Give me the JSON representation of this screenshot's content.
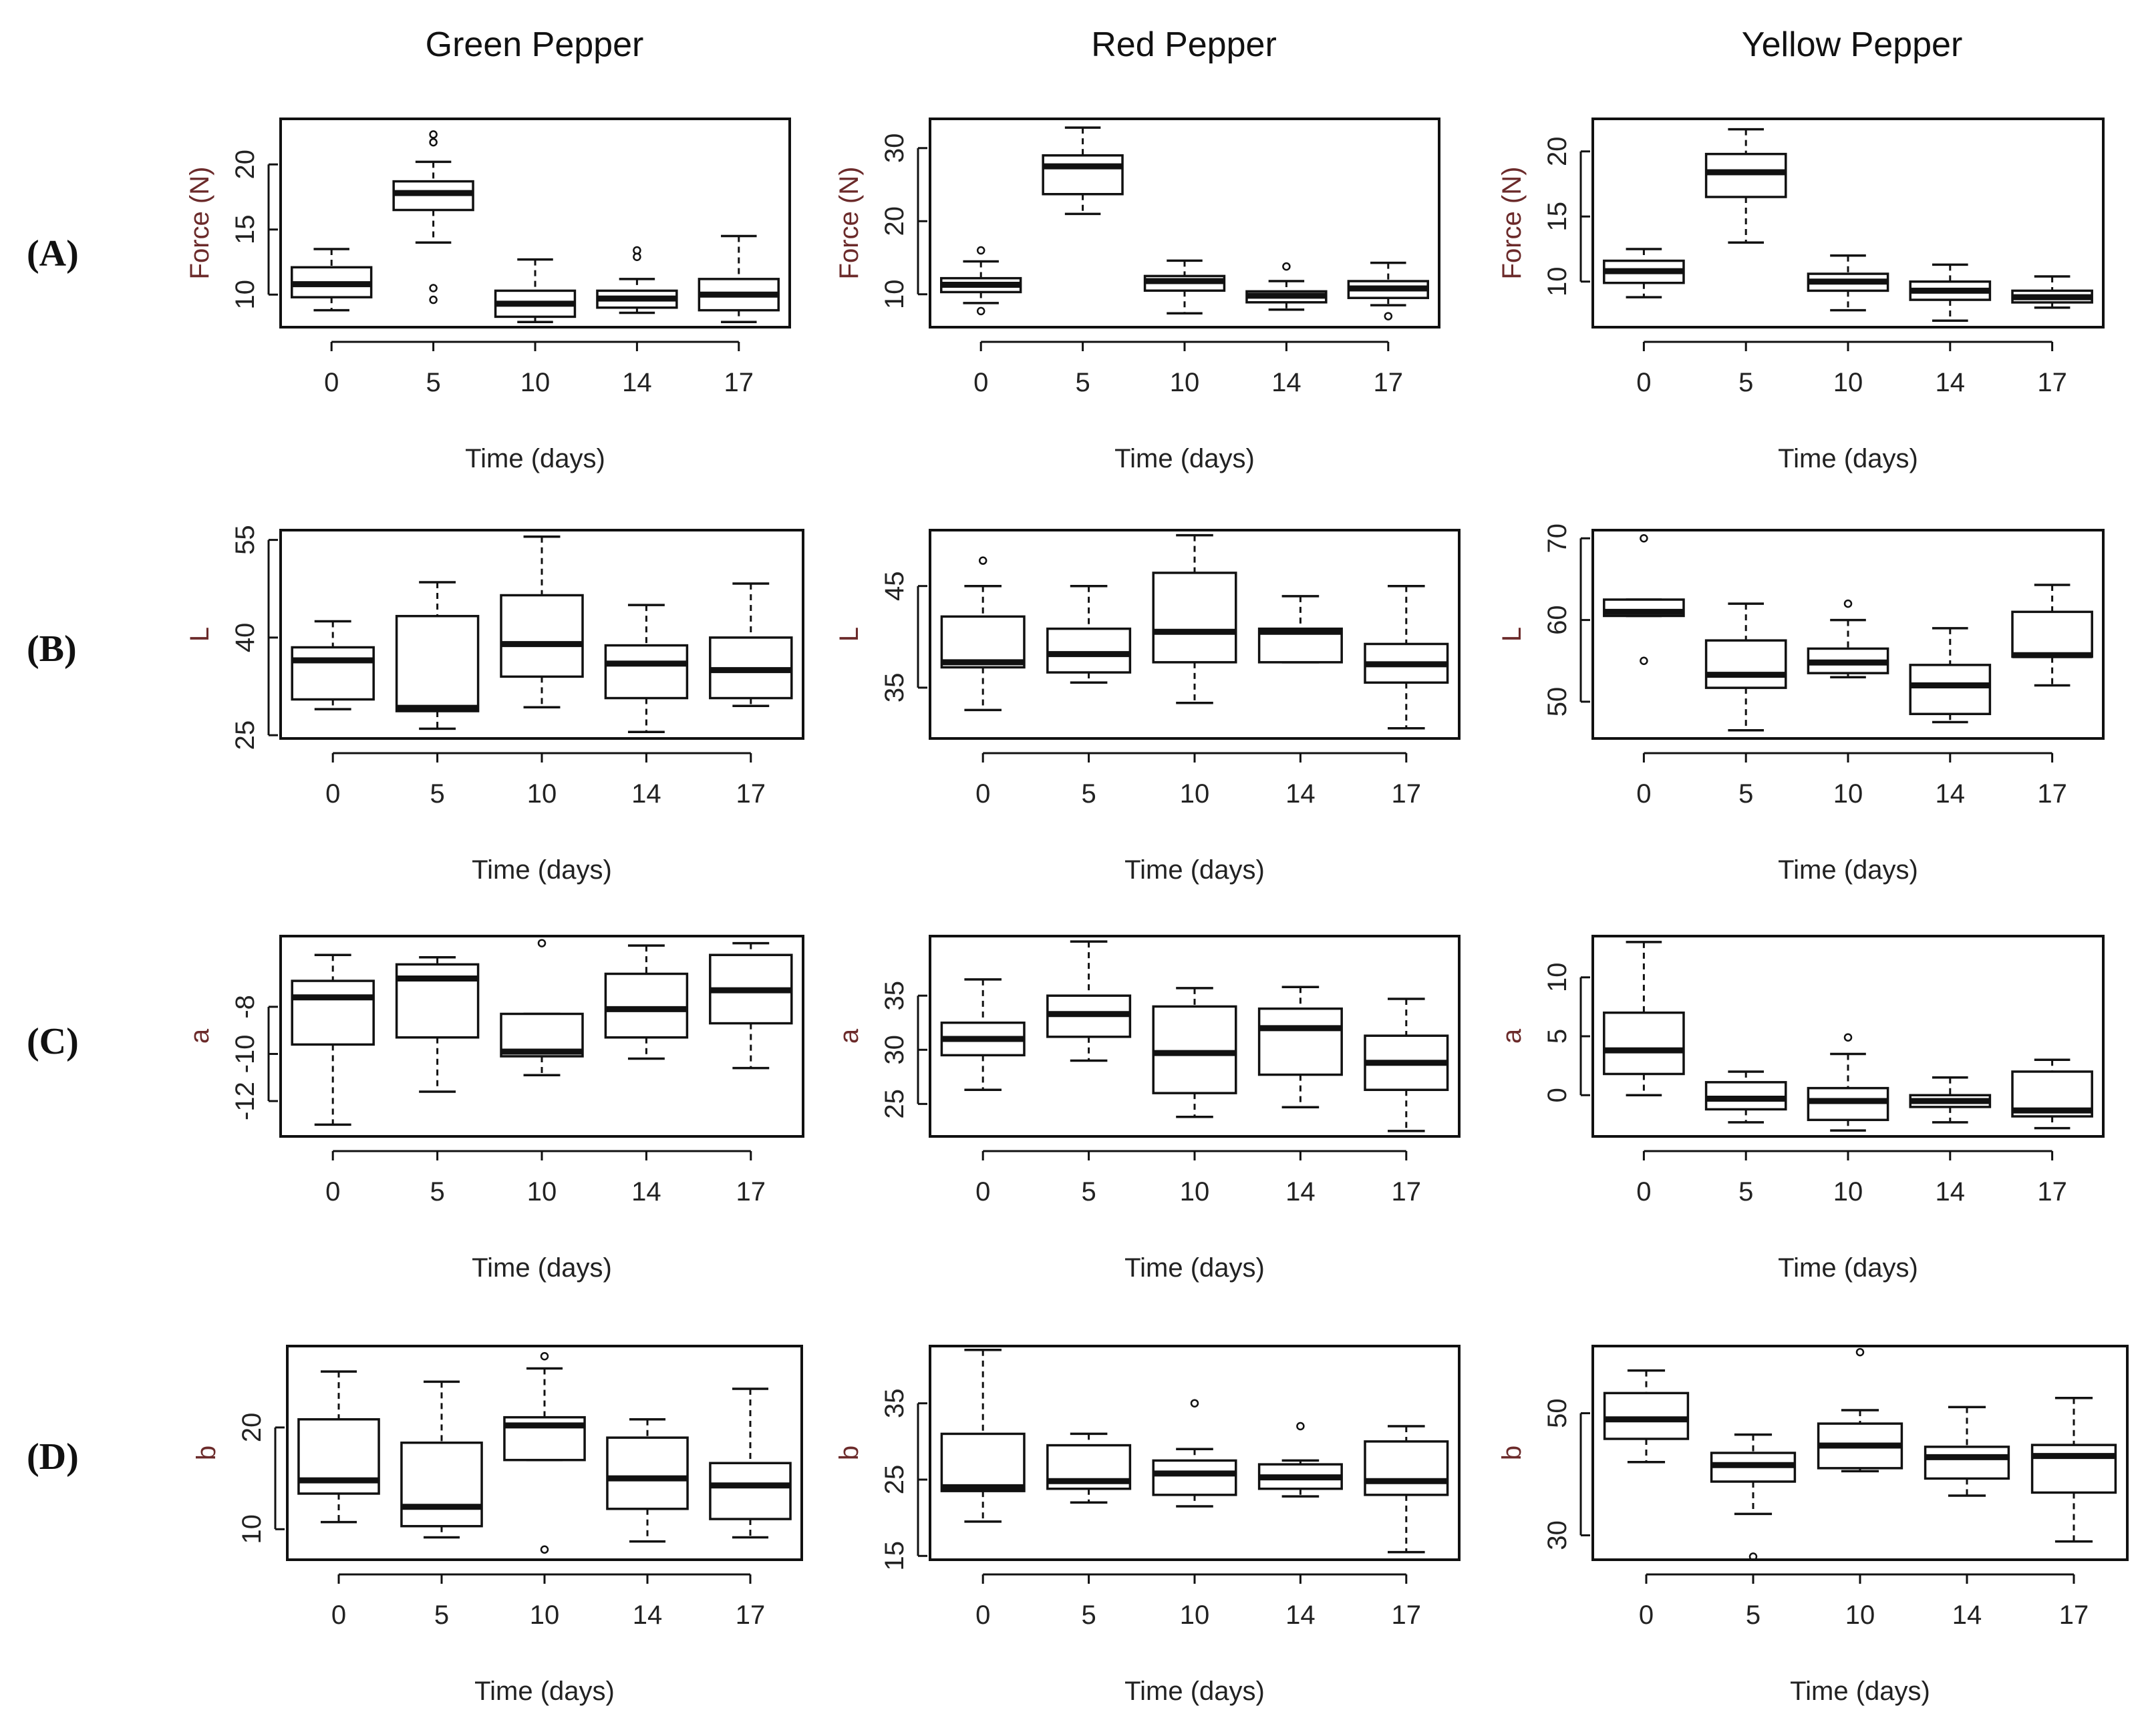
{
  "figure": {
    "column_titles": [
      "Green Pepper",
      "Red Pepper",
      "Yellow Pepper"
    ],
    "row_labels": [
      "(A)",
      "(B)",
      "(C)",
      "(D)"
    ],
    "x_label": "Time (days)"
  },
  "chart_data": [
    {
      "type": "box",
      "title": "Green Pepper (A)",
      "xlabel": "Time (days)",
      "ylabel": "Force (N)",
      "categories": [
        "0",
        "5",
        "10",
        "14",
        "17"
      ],
      "ylim": [
        7.5,
        23.5
      ],
      "yticks": [
        10,
        15,
        20
      ],
      "boxes": [
        {
          "min": 8.8,
          "q1": 9.8,
          "median": 10.8,
          "q3": 12.1,
          "max": 13.5,
          "outliers": []
        },
        {
          "min": 14.0,
          "q1": 16.5,
          "median": 17.8,
          "q3": 18.7,
          "max": 20.2,
          "outliers": [
            9.6,
            10.5,
            21.7,
            22.3
          ]
        },
        {
          "min": 7.9,
          "q1": 8.3,
          "median": 9.3,
          "q3": 10.3,
          "max": 12.7,
          "outliers": []
        },
        {
          "min": 8.6,
          "q1": 9.0,
          "median": 9.7,
          "q3": 10.3,
          "max": 11.2,
          "outliers": [
            12.9,
            13.4
          ]
        },
        {
          "min": 7.9,
          "q1": 8.8,
          "median": 10.0,
          "q3": 11.2,
          "max": 14.5,
          "outliers": []
        }
      ]
    },
    {
      "type": "box",
      "title": "Red Pepper (A)",
      "xlabel": "Time (days)",
      "ylabel": "Force (N)",
      "categories": [
        "0",
        "5",
        "10",
        "14",
        "17"
      ],
      "ylim": [
        5.5,
        34
      ],
      "yticks": [
        10,
        20,
        30
      ],
      "boxes": [
        {
          "min": 8.8,
          "q1": 10.3,
          "median": 11.3,
          "q3": 12.2,
          "max": 14.5,
          "outliers": [
            7.7,
            16.0
          ]
        },
        {
          "min": 21.0,
          "q1": 23.7,
          "median": 27.5,
          "q3": 29.0,
          "max": 32.8,
          "outliers": []
        },
        {
          "min": 7.4,
          "q1": 10.5,
          "median": 11.8,
          "q3": 12.5,
          "max": 14.6,
          "outliers": []
        },
        {
          "min": 7.9,
          "q1": 8.9,
          "median": 9.8,
          "q3": 10.4,
          "max": 11.8,
          "outliers": [
            13.8
          ]
        },
        {
          "min": 8.5,
          "q1": 9.5,
          "median": 10.8,
          "q3": 11.8,
          "max": 14.3,
          "outliers": [
            7.0
          ]
        }
      ]
    },
    {
      "type": "box",
      "title": "Yellow Pepper (A)",
      "xlabel": "Time (days)",
      "ylabel": "Force (N)",
      "categories": [
        "0",
        "5",
        "10",
        "14",
        "17"
      ],
      "ylim": [
        6.5,
        22.5
      ],
      "yticks": [
        10,
        15,
        20
      ],
      "boxes": [
        {
          "min": 8.8,
          "q1": 9.9,
          "median": 10.8,
          "q3": 11.6,
          "max": 12.5,
          "outliers": []
        },
        {
          "min": 13.0,
          "q1": 16.5,
          "median": 18.4,
          "q3": 19.8,
          "max": 21.7,
          "outliers": []
        },
        {
          "min": 7.8,
          "q1": 9.3,
          "median": 10.0,
          "q3": 10.6,
          "max": 12.0,
          "outliers": []
        },
        {
          "min": 7.0,
          "q1": 8.6,
          "median": 9.3,
          "q3": 10.0,
          "max": 11.3,
          "outliers": []
        },
        {
          "min": 8.0,
          "q1": 8.4,
          "median": 8.8,
          "q3": 9.3,
          "max": 10.4,
          "outliers": []
        }
      ]
    },
    {
      "type": "box",
      "title": "Green Pepper (B)",
      "xlabel": "Time (days)",
      "ylabel": "L",
      "categories": [
        "0",
        "5",
        "10",
        "14",
        "17"
      ],
      "ylim": [
        24.5,
        56.5
      ],
      "yticks": [
        25,
        40,
        55
      ],
      "boxes": [
        {
          "min": 29.0,
          "q1": 30.5,
          "median": 36.5,
          "q3": 38.5,
          "max": 42.5,
          "outliers": []
        },
        {
          "min": 26.0,
          "q1": 28.7,
          "median": 29.2,
          "q3": 43.3,
          "max": 48.5,
          "outliers": []
        },
        {
          "min": 29.3,
          "q1": 34.0,
          "median": 39.0,
          "q3": 46.5,
          "max": 55.5,
          "outliers": []
        },
        {
          "min": 25.5,
          "q1": 30.7,
          "median": 36.0,
          "q3": 38.8,
          "max": 45.0,
          "outliers": []
        },
        {
          "min": 29.5,
          "q1": 30.7,
          "median": 35.0,
          "q3": 40.0,
          "max": 48.3,
          "outliers": []
        }
      ]
    },
    {
      "type": "box",
      "title": "Red Pepper (B)",
      "xlabel": "Time (days)",
      "ylabel": "L",
      "categories": [
        "0",
        "5",
        "10",
        "14",
        "17"
      ],
      "ylim": [
        30,
        50.5
      ],
      "yticks": [
        35,
        45
      ],
      "boxes": [
        {
          "min": 32.8,
          "q1": 37.0,
          "median": 37.5,
          "q3": 42.0,
          "max": 45.0,
          "outliers": [
            47.5
          ]
        },
        {
          "min": 35.5,
          "q1": 36.5,
          "median": 38.3,
          "q3": 40.8,
          "max": 45.0,
          "outliers": []
        },
        {
          "min": 33.5,
          "q1": 37.5,
          "median": 40.5,
          "q3": 46.3,
          "max": 50.0,
          "outliers": []
        },
        {
          "min": 37.5,
          "q1": 37.5,
          "median": 40.5,
          "q3": 40.8,
          "max": 44.0,
          "outliers": []
        },
        {
          "min": 31.0,
          "q1": 35.5,
          "median": 37.3,
          "q3": 39.3,
          "max": 45.0,
          "outliers": []
        }
      ]
    },
    {
      "type": "box",
      "title": "Yellow Pepper (B)",
      "xlabel": "Time (days)",
      "ylabel": "L",
      "categories": [
        "0",
        "5",
        "10",
        "14",
        "17"
      ],
      "ylim": [
        45.5,
        71
      ],
      "yticks": [
        50,
        60,
        70
      ],
      "boxes": [
        {
          "min": 60.5,
          "q1": 60.5,
          "median": 61.0,
          "q3": 62.5,
          "max": 62.5,
          "outliers": [
            55.0,
            70.0
          ]
        },
        {
          "min": 46.5,
          "q1": 51.7,
          "median": 53.3,
          "q3": 57.5,
          "max": 62.0,
          "outliers": []
        },
        {
          "min": 53.0,
          "q1": 53.5,
          "median": 54.8,
          "q3": 56.5,
          "max": 60.0,
          "outliers": [
            62.0
          ]
        },
        {
          "min": 47.5,
          "q1": 48.5,
          "median": 52.0,
          "q3": 54.5,
          "max": 59.0,
          "outliers": []
        },
        {
          "min": 52.0,
          "q1": 55.5,
          "median": 55.7,
          "q3": 61.0,
          "max": 64.3,
          "outliers": []
        }
      ]
    },
    {
      "type": "box",
      "title": "Green Pepper (C)",
      "xlabel": "Time (days)",
      "ylabel": "a",
      "categories": [
        "0",
        "5",
        "10",
        "14",
        "17"
      ],
      "ylim": [
        -13.5,
        -5
      ],
      "yticks": [
        -8,
        -10,
        -12
      ],
      "boxes": [
        {
          "min": -13.0,
          "q1": -9.6,
          "median": -7.6,
          "q3": -6.9,
          "max": -5.8,
          "outliers": []
        },
        {
          "min": -11.6,
          "q1": -9.3,
          "median": -6.8,
          "q3": -6.2,
          "max": -5.9,
          "outliers": []
        },
        {
          "min": -10.9,
          "q1": -10.1,
          "median": -9.9,
          "q3": -8.3,
          "max": -8.3,
          "outliers": [
            -5.3
          ]
        },
        {
          "min": -10.2,
          "q1": -9.3,
          "median": -8.1,
          "q3": -6.6,
          "max": -5.4,
          "outliers": []
        },
        {
          "min": -10.6,
          "q1": -8.7,
          "median": -7.3,
          "q3": -5.8,
          "max": -5.3,
          "outliers": []
        }
      ]
    },
    {
      "type": "box",
      "title": "Red Pepper (C)",
      "xlabel": "Time (days)",
      "ylabel": "a",
      "categories": [
        "0",
        "5",
        "10",
        "14",
        "17"
      ],
      "ylim": [
        22,
        40.5
      ],
      "yticks": [
        25,
        30,
        35
      ],
      "boxes": [
        {
          "min": 26.3,
          "q1": 29.5,
          "median": 31.0,
          "q3": 32.5,
          "max": 36.5,
          "outliers": []
        },
        {
          "min": 29.0,
          "q1": 31.2,
          "median": 33.3,
          "q3": 35.0,
          "max": 40.0,
          "outliers": []
        },
        {
          "min": 23.8,
          "q1": 26.0,
          "median": 29.7,
          "q3": 34.0,
          "max": 35.7,
          "outliers": []
        },
        {
          "min": 24.7,
          "q1": 27.7,
          "median": 32.0,
          "q3": 33.8,
          "max": 35.8,
          "outliers": []
        },
        {
          "min": 22.5,
          "q1": 26.3,
          "median": 28.8,
          "q3": 31.3,
          "max": 34.7,
          "outliers": []
        }
      ]
    },
    {
      "type": "box",
      "title": "Yellow Pepper (C)",
      "xlabel": "Time (days)",
      "ylabel": "a",
      "categories": [
        "0",
        "5",
        "10",
        "14",
        "17"
      ],
      "ylim": [
        -3.5,
        13.5
      ],
      "yticks": [
        0,
        5,
        10
      ],
      "boxes": [
        {
          "min": 0.0,
          "q1": 1.8,
          "median": 3.8,
          "q3": 7.0,
          "max": 13.0,
          "outliers": []
        },
        {
          "min": -2.3,
          "q1": -1.2,
          "median": -0.3,
          "q3": 1.1,
          "max": 2.0,
          "outliers": []
        },
        {
          "min": -3.0,
          "q1": -2.1,
          "median": -0.5,
          "q3": 0.6,
          "max": 3.5,
          "outliers": [
            4.9
          ]
        },
        {
          "min": -2.3,
          "q1": -1.0,
          "median": -0.5,
          "q3": 0.0,
          "max": 1.5,
          "outliers": []
        },
        {
          "min": -2.8,
          "q1": -1.8,
          "median": -1.3,
          "q3": 2.0,
          "max": 3.0,
          "outliers": []
        }
      ]
    },
    {
      "type": "box",
      "title": "Green Pepper (D)",
      "xlabel": "Time (days)",
      "ylabel": "b",
      "categories": [
        "0",
        "5",
        "10",
        "14",
        "17"
      ],
      "ylim": [
        7,
        28
      ],
      "yticks": [
        10,
        20
      ],
      "boxes": [
        {
          "min": 10.7,
          "q1": 13.5,
          "median": 14.8,
          "q3": 20.8,
          "max": 25.5,
          "outliers": []
        },
        {
          "min": 9.2,
          "q1": 10.3,
          "median": 12.2,
          "q3": 18.5,
          "max": 24.5,
          "outliers": []
        },
        {
          "min": 16.8,
          "q1": 16.8,
          "median": 20.2,
          "q3": 21.0,
          "max": 25.8,
          "outliers": [
            8.0,
            27.0
          ]
        },
        {
          "min": 8.8,
          "q1": 12.0,
          "median": 15.0,
          "q3": 19.0,
          "max": 20.8,
          "outliers": []
        },
        {
          "min": 9.2,
          "q1": 11.0,
          "median": 14.3,
          "q3": 16.5,
          "max": 23.8,
          "outliers": []
        }
      ]
    },
    {
      "type": "box",
      "title": "Red Pepper (D)",
      "xlabel": "Time (days)",
      "ylabel": "b",
      "categories": [
        "0",
        "5",
        "10",
        "14",
        "17"
      ],
      "ylim": [
        14.5,
        42.5
      ],
      "yticks": [
        15,
        25,
        35
      ],
      "boxes": [
        {
          "min": 19.5,
          "q1": 23.5,
          "median": 24.0,
          "q3": 31.0,
          "max": 42.0,
          "outliers": []
        },
        {
          "min": 22.0,
          "q1": 23.8,
          "median": 24.8,
          "q3": 29.5,
          "max": 31.0,
          "outliers": []
        },
        {
          "min": 21.5,
          "q1": 23.0,
          "median": 25.8,
          "q3": 27.5,
          "max": 29.0,
          "outliers": [
            35.0
          ]
        },
        {
          "min": 22.8,
          "q1": 23.8,
          "median": 25.3,
          "q3": 27.0,
          "max": 27.5,
          "outliers": [
            32.0
          ]
        },
        {
          "min": 15.5,
          "q1": 23.0,
          "median": 24.8,
          "q3": 30.0,
          "max": 32.0,
          "outliers": []
        }
      ]
    },
    {
      "type": "box",
      "title": "Yellow Pepper (D)",
      "xlabel": "Time (days)",
      "ylabel": "b",
      "categories": [
        "0",
        "5",
        "10",
        "14",
        "17"
      ],
      "ylim": [
        26,
        61
      ],
      "yticks": [
        30,
        50
      ],
      "boxes": [
        {
          "min": 42.0,
          "q1": 45.8,
          "median": 49.0,
          "q3": 53.3,
          "max": 57.0,
          "outliers": []
        },
        {
          "min": 33.5,
          "q1": 38.8,
          "median": 41.5,
          "q3": 43.5,
          "max": 46.5,
          "outliers": [
            26.5
          ]
        },
        {
          "min": 40.5,
          "q1": 41.0,
          "median": 44.7,
          "q3": 48.3,
          "max": 50.5,
          "outliers": [
            60.0
          ]
        },
        {
          "min": 36.5,
          "q1": 39.3,
          "median": 42.8,
          "q3": 44.5,
          "max": 51.0,
          "outliers": []
        },
        {
          "min": 29.0,
          "q1": 37.0,
          "median": 43.0,
          "q3": 44.8,
          "max": 52.5,
          "outliers": []
        }
      ]
    }
  ]
}
